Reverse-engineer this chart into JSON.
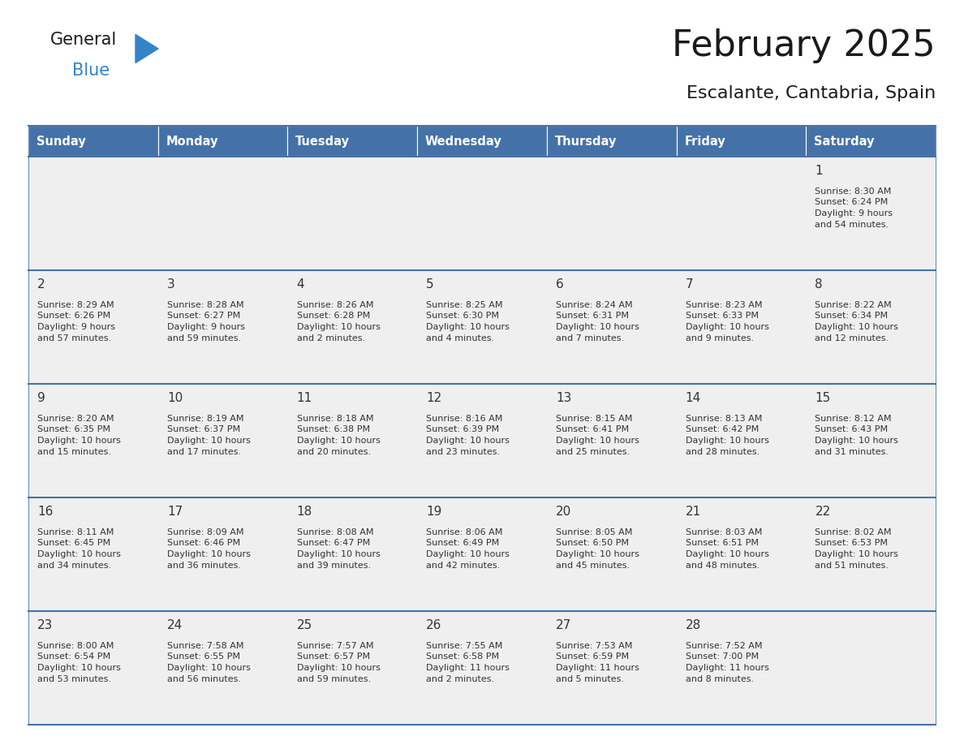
{
  "title": "February 2025",
  "subtitle": "Escalante, Cantabria, Spain",
  "header_bg_color": "#4472a8",
  "header_text_color": "#ffffff",
  "days_of_week": [
    "Sunday",
    "Monday",
    "Tuesday",
    "Wednesday",
    "Thursday",
    "Friday",
    "Saturday"
  ],
  "cell_bg_color": "#efefef",
  "border_color": "#4472a8",
  "text_color": "#333333",
  "day_number_color": "#333333",
  "calendar_data": [
    [
      null,
      null,
      null,
      null,
      null,
      null,
      {
        "day": "1",
        "sunrise": "8:30 AM",
        "sunset": "6:24 PM",
        "daylight": "9 hours\nand 54 minutes."
      }
    ],
    [
      {
        "day": "2",
        "sunrise": "8:29 AM",
        "sunset": "6:26 PM",
        "daylight": "9 hours\nand 57 minutes."
      },
      {
        "day": "3",
        "sunrise": "8:28 AM",
        "sunset": "6:27 PM",
        "daylight": "9 hours\nand 59 minutes."
      },
      {
        "day": "4",
        "sunrise": "8:26 AM",
        "sunset": "6:28 PM",
        "daylight": "10 hours\nand 2 minutes."
      },
      {
        "day": "5",
        "sunrise": "8:25 AM",
        "sunset": "6:30 PM",
        "daylight": "10 hours\nand 4 minutes."
      },
      {
        "day": "6",
        "sunrise": "8:24 AM",
        "sunset": "6:31 PM",
        "daylight": "10 hours\nand 7 minutes."
      },
      {
        "day": "7",
        "sunrise": "8:23 AM",
        "sunset": "6:33 PM",
        "daylight": "10 hours\nand 9 minutes."
      },
      {
        "day": "8",
        "sunrise": "8:22 AM",
        "sunset": "6:34 PM",
        "daylight": "10 hours\nand 12 minutes."
      }
    ],
    [
      {
        "day": "9",
        "sunrise": "8:20 AM",
        "sunset": "6:35 PM",
        "daylight": "10 hours\nand 15 minutes."
      },
      {
        "day": "10",
        "sunrise": "8:19 AM",
        "sunset": "6:37 PM",
        "daylight": "10 hours\nand 17 minutes."
      },
      {
        "day": "11",
        "sunrise": "8:18 AM",
        "sunset": "6:38 PM",
        "daylight": "10 hours\nand 20 minutes."
      },
      {
        "day": "12",
        "sunrise": "8:16 AM",
        "sunset": "6:39 PM",
        "daylight": "10 hours\nand 23 minutes."
      },
      {
        "day": "13",
        "sunrise": "8:15 AM",
        "sunset": "6:41 PM",
        "daylight": "10 hours\nand 25 minutes."
      },
      {
        "day": "14",
        "sunrise": "8:13 AM",
        "sunset": "6:42 PM",
        "daylight": "10 hours\nand 28 minutes."
      },
      {
        "day": "15",
        "sunrise": "8:12 AM",
        "sunset": "6:43 PM",
        "daylight": "10 hours\nand 31 minutes."
      }
    ],
    [
      {
        "day": "16",
        "sunrise": "8:11 AM",
        "sunset": "6:45 PM",
        "daylight": "10 hours\nand 34 minutes."
      },
      {
        "day": "17",
        "sunrise": "8:09 AM",
        "sunset": "6:46 PM",
        "daylight": "10 hours\nand 36 minutes."
      },
      {
        "day": "18",
        "sunrise": "8:08 AM",
        "sunset": "6:47 PM",
        "daylight": "10 hours\nand 39 minutes."
      },
      {
        "day": "19",
        "sunrise": "8:06 AM",
        "sunset": "6:49 PM",
        "daylight": "10 hours\nand 42 minutes."
      },
      {
        "day": "20",
        "sunrise": "8:05 AM",
        "sunset": "6:50 PM",
        "daylight": "10 hours\nand 45 minutes."
      },
      {
        "day": "21",
        "sunrise": "8:03 AM",
        "sunset": "6:51 PM",
        "daylight": "10 hours\nand 48 minutes."
      },
      {
        "day": "22",
        "sunrise": "8:02 AM",
        "sunset": "6:53 PM",
        "daylight": "10 hours\nand 51 minutes."
      }
    ],
    [
      {
        "day": "23",
        "sunrise": "8:00 AM",
        "sunset": "6:54 PM",
        "daylight": "10 hours\nand 53 minutes."
      },
      {
        "day": "24",
        "sunrise": "7:58 AM",
        "sunset": "6:55 PM",
        "daylight": "10 hours\nand 56 minutes."
      },
      {
        "day": "25",
        "sunrise": "7:57 AM",
        "sunset": "6:57 PM",
        "daylight": "10 hours\nand 59 minutes."
      },
      {
        "day": "26",
        "sunrise": "7:55 AM",
        "sunset": "6:58 PM",
        "daylight": "11 hours\nand 2 minutes."
      },
      {
        "day": "27",
        "sunrise": "7:53 AM",
        "sunset": "6:59 PM",
        "daylight": "11 hours\nand 5 minutes."
      },
      {
        "day": "28",
        "sunrise": "7:52 AM",
        "sunset": "7:00 PM",
        "daylight": "11 hours\nand 8 minutes."
      },
      null
    ]
  ],
  "logo_text_general": "General",
  "logo_text_blue": "Blue",
  "logo_color_general": "#1a1a1a",
  "logo_color_blue": "#3383c8",
  "logo_triangle_color": "#3383c8",
  "fig_width": 11.88,
  "fig_height": 9.18,
  "dpi": 100
}
